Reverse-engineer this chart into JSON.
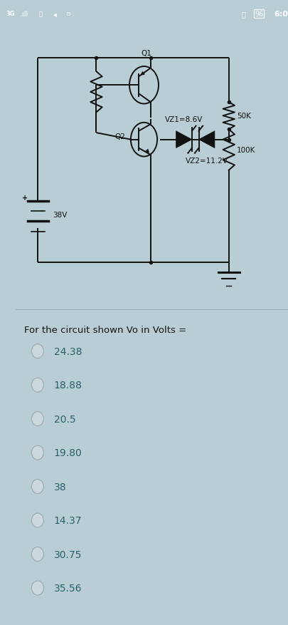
{
  "status_bar_bg": "#222222",
  "circuit_bg": "#f5f5f5",
  "circuit_area_bg": "#e8eef0",
  "question_bg": "#b8ced4",
  "question_text": "For the circuit shown Vo in Volts =",
  "options": [
    "24.38",
    "18.88",
    "20.5",
    "19.80",
    "38",
    "14.37",
    "30.75",
    "35.56"
  ],
  "circuit_labels": {
    "Q1": "Q1",
    "Q2": "Q2",
    "VZ1": "VZ1=8.6V",
    "VZ2": "VZ2=11.2V",
    "R1": "50K",
    "R2": "100K",
    "V": "38V"
  },
  "option_text_color": "#2a5f6e",
  "question_text_color": "#111111",
  "radio_fill": "#cdd8dc",
  "radio_edge": "#9aaab0",
  "circuit_line_color": "#111111",
  "left_bar_color": "#b0c8d0"
}
